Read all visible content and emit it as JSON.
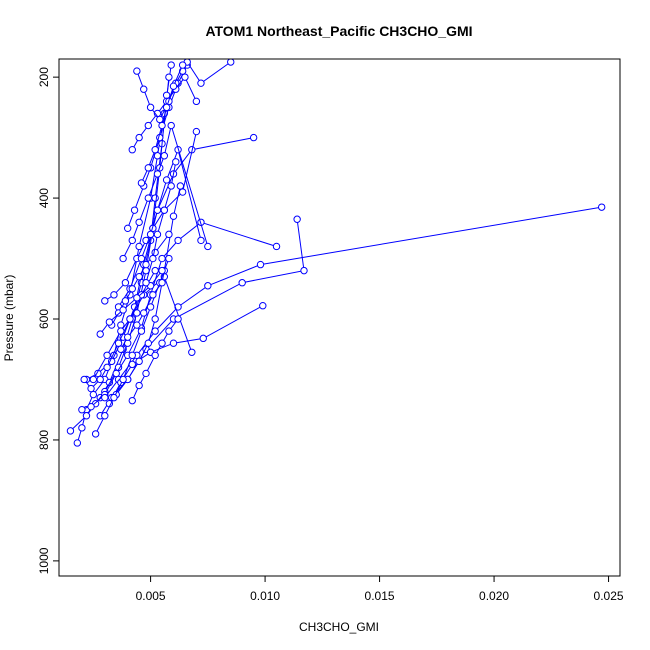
{
  "chart_data": {
    "type": "line",
    "title": "ATOM1 Northeast_Pacific CH3CHO_GMI",
    "xlabel": "CH3CHO_GMI",
    "ylabel": "Pressure (mbar)",
    "xlim": [
      0.001,
      0.0255
    ],
    "ylim": [
      1025,
      170
    ],
    "y_reversed": true,
    "grid": false,
    "x_ticks": [
      0.005,
      0.01,
      0.015,
      0.02,
      0.025
    ],
    "x_tick_labels": [
      "0.005",
      "0.010",
      "0.015",
      "0.020",
      "0.025"
    ],
    "y_ticks": [
      200,
      400,
      600,
      800,
      1000
    ],
    "y_tick_labels": [
      "200",
      "400",
      "600",
      "800",
      "1000"
    ],
    "series_color": "#0000ff",
    "marker": "open-circle",
    "series": [
      {
        "x": [
          0.0018,
          0.002,
          0.0022,
          0.0025,
          0.003,
          0.0034,
          0.0037,
          0.0041,
          0.0045,
          0.005,
          0.0053,
          0.0056,
          0.0059
        ],
        "y": [
          805,
          780,
          750,
          725,
          700,
          660,
          610,
          560,
          480,
          400,
          330,
          260,
          180
        ]
      },
      {
        "x": [
          0.0015,
          0.0022,
          0.0028,
          0.0032,
          0.0038,
          0.0042,
          0.0046,
          0.005,
          0.0052,
          0.0055,
          0.0058
        ],
        "y": [
          785,
          760,
          730,
          705,
          650,
          600,
          540,
          470,
          400,
          310,
          200
        ]
      },
      {
        "x": [
          0.002,
          0.0026,
          0.003,
          0.0036,
          0.004,
          0.0044,
          0.0048,
          0.0051,
          0.0054,
          0.0057
        ],
        "y": [
          750,
          740,
          720,
          680,
          640,
          590,
          520,
          450,
          350,
          230
        ]
      },
      {
        "x": [
          0.0022,
          0.0027,
          0.0033,
          0.0038,
          0.0043,
          0.0047,
          0.0053,
          0.006,
          0.0068,
          0.0095
        ],
        "y": [
          700,
          690,
          670,
          630,
          580,
          510,
          420,
          360,
          320,
          300
        ]
      },
      {
        "x": [
          0.0024,
          0.003,
          0.0035,
          0.004,
          0.0046,
          0.005,
          0.0055,
          0.0062,
          0.0072,
          0.0105
        ],
        "y": [
          745,
          725,
          690,
          660,
          615,
          560,
          500,
          470,
          440,
          480
        ]
      },
      {
        "x": [
          0.0028,
          0.0033,
          0.004,
          0.0048,
          0.006,
          0.009,
          0.0117,
          0.0114
        ],
        "y": [
          760,
          730,
          700,
          650,
          600,
          540,
          520,
          435
        ]
      },
      {
        "x": [
          0.003,
          0.0036,
          0.0044,
          0.0052,
          0.0062,
          0.0075,
          0.0098,
          0.0247
        ],
        "y": [
          730,
          700,
          660,
          620,
          580,
          545,
          510,
          415
        ]
      },
      {
        "x": [
          0.0032,
          0.0037,
          0.0042,
          0.005,
          0.006,
          0.0073,
          0.0099
        ],
        "y": [
          740,
          705,
          675,
          655,
          640,
          632,
          578
        ]
      },
      {
        "x": [
          0.0025,
          0.0031,
          0.0037,
          0.0041,
          0.0047,
          0.0056,
          0.0068
        ],
        "y": [
          700,
          660,
          620,
          600,
          560,
          530,
          655
        ]
      },
      {
        "x": [
          0.0035,
          0.004,
          0.0045,
          0.0049,
          0.0052,
          0.0056,
          0.006,
          0.0063
        ],
        "y": [
          725,
          700,
          670,
          640,
          600,
          520,
          430,
          380
        ]
      },
      {
        "x": [
          0.003,
          0.0034,
          0.0039,
          0.0044,
          0.0048,
          0.0051,
          0.0056,
          0.0064,
          0.007
        ],
        "y": [
          570,
          560,
          540,
          500,
          470,
          450,
          420,
          390,
          290
        ]
      },
      {
        "x": [
          0.0036,
          0.0041,
          0.0046,
          0.005,
          0.0053,
          0.0057,
          0.0062,
          0.0072
        ],
        "y": [
          580,
          550,
          500,
          460,
          420,
          370,
          320,
          470
        ]
      },
      {
        "x": [
          0.0038,
          0.0042,
          0.0045,
          0.0049,
          0.0053,
          0.0056,
          0.0059,
          0.0075
        ],
        "y": [
          500,
          470,
          440,
          400,
          360,
          330,
          280,
          480
        ]
      },
      {
        "x": [
          0.004,
          0.0043,
          0.0047,
          0.005,
          0.0054,
          0.0058,
          0.0062,
          0.0066
        ],
        "y": [
          450,
          420,
          380,
          350,
          300,
          250,
          210,
          180
        ]
      },
      {
        "x": [
          0.0042,
          0.0045,
          0.0049,
          0.0053,
          0.0057,
          0.0061,
          0.0065,
          0.007
        ],
        "y": [
          320,
          300,
          280,
          260,
          240,
          220,
          200,
          240
        ]
      },
      {
        "x": [
          0.0044,
          0.0047,
          0.005,
          0.0054,
          0.0058,
          0.0061,
          0.0064,
          0.0066,
          0.0072,
          0.0085
        ],
        "y": [
          190,
          220,
          250,
          270,
          240,
          210,
          190,
          175,
          210,
          175
        ]
      },
      {
        "x": [
          0.0026,
          0.003,
          0.0034,
          0.0038,
          0.0042,
          0.0046,
          0.005,
          0.0054,
          0.0058
        ],
        "y": [
          790,
          760,
          730,
          700,
          660,
          620,
          580,
          540,
          500
        ]
      },
      {
        "x": [
          0.0021,
          0.0024,
          0.0028,
          0.0031,
          0.0036,
          0.0041,
          0.0046,
          0.0052
        ],
        "y": [
          700,
          715,
          700,
          680,
          640,
          600,
          560,
          520
        ]
      },
      {
        "x": [
          0.0033,
          0.0036,
          0.0039,
          0.0042,
          0.0045,
          0.0048,
          0.0052,
          0.0058
        ],
        "y": [
          610,
          590,
          570,
          550,
          530,
          510,
          490,
          460
        ]
      },
      {
        "x": [
          0.0037,
          0.004,
          0.0044,
          0.0047,
          0.0051,
          0.0055
        ],
        "y": [
          650,
          630,
          610,
          590,
          560,
          540
        ]
      },
      {
        "x": [
          0.0042,
          0.0045,
          0.0048,
          0.0052,
          0.0055,
          0.0058,
          0.0062
        ],
        "y": [
          735,
          710,
          690,
          660,
          640,
          620,
          600
        ]
      },
      {
        "x": [
          0.0028,
          0.0032,
          0.0038,
          0.0044,
          0.005,
          0.0055
        ],
        "y": [
          625,
          605,
          585,
          565,
          545,
          520
        ]
      },
      {
        "x": [
          0.0046,
          0.0049,
          0.0052,
          0.0055,
          0.0057,
          0.006,
          0.0064
        ],
        "y": [
          375,
          350,
          320,
          280,
          250,
          215,
          180
        ]
      },
      {
        "x": [
          0.0048,
          0.0051,
          0.0053,
          0.0056,
          0.0059,
          0.0061
        ],
        "y": [
          540,
          500,
          460,
          420,
          380,
          340
        ]
      }
    ]
  }
}
